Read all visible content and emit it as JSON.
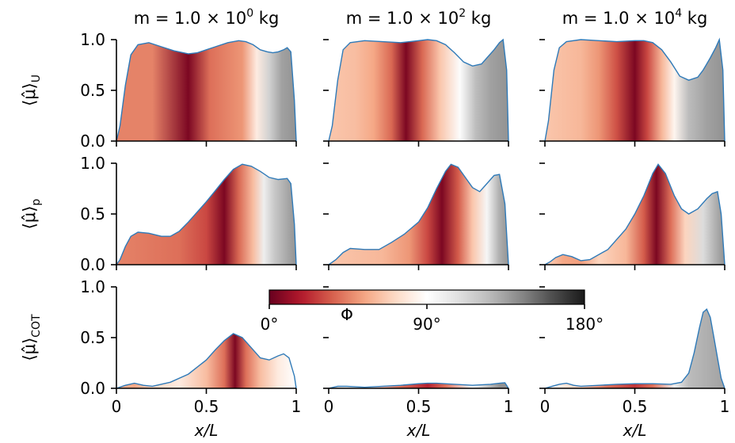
{
  "chart_data": {
    "type": "area",
    "colormap_ticks": [
      "0°",
      "90°",
      "180°"
    ],
    "colormap_label": "Φ",
    "colormap_stops": [
      "#67001f",
      "#b2182b",
      "#d6604d",
      "#f4a582",
      "#fddbc7",
      "#ffffff",
      "#e0e0e0",
      "#bababa",
      "#878787",
      "#4d4d4d",
      "#1a1a1a"
    ],
    "curve_color": "#2f7ab8",
    "xlabel": "x/L",
    "x_ticks": [
      "0",
      "0.5",
      "1"
    ],
    "xlim": [
      0,
      1
    ],
    "y_ticks": [
      "0.0",
      "0.5",
      "1.0"
    ],
    "ylim": [
      0,
      1
    ],
    "col_titles": [
      {
        "pre": "m = 1.0 × 10",
        "sup": "0",
        "post": " kg"
      },
      {
        "pre": "m = 1.0 × 10",
        "sup": "2",
        "post": " kg"
      },
      {
        "pre": "m = 1.0 × 10",
        "sup": "4",
        "post": " kg"
      }
    ],
    "row_labels": [
      {
        "base": "⟨μ̂⟩",
        "sub": "U"
      },
      {
        "base": "⟨μ̂⟩",
        "sub": "p"
      },
      {
        "base": "⟨μ̂⟩",
        "sub": "COT"
      }
    ],
    "panels": [
      {
        "row": 0,
        "col": 0,
        "x": [
          0,
          0.02,
          0.05,
          0.08,
          0.12,
          0.18,
          0.25,
          0.32,
          0.4,
          0.45,
          0.5,
          0.55,
          0.62,
          0.68,
          0.72,
          0.76,
          0.8,
          0.84,
          0.87,
          0.9,
          0.93,
          0.95,
          0.97,
          0.99,
          1.0
        ],
        "y": [
          0,
          0.15,
          0.55,
          0.85,
          0.95,
          0.97,
          0.93,
          0.89,
          0.86,
          0.87,
          0.9,
          0.93,
          0.97,
          0.99,
          0.98,
          0.95,
          0.9,
          0.88,
          0.87,
          0.88,
          0.9,
          0.92,
          0.88,
          0.4,
          0
        ],
        "phase": [
          [
            0,
            45
          ],
          [
            0.2,
            45
          ],
          [
            0.4,
            5
          ],
          [
            0.52,
            40
          ],
          [
            0.7,
            50
          ],
          [
            0.78,
            80
          ],
          [
            0.85,
            115
          ],
          [
            0.92,
            135
          ],
          [
            1.0,
            140
          ]
        ]
      },
      {
        "row": 0,
        "col": 1,
        "x": [
          0,
          0.02,
          0.05,
          0.08,
          0.12,
          0.2,
          0.3,
          0.4,
          0.5,
          0.55,
          0.6,
          0.65,
          0.7,
          0.75,
          0.8,
          0.85,
          0.88,
          0.92,
          0.95,
          0.97,
          0.99,
          1.0
        ],
        "y": [
          0,
          0.15,
          0.6,
          0.9,
          0.97,
          0.99,
          0.98,
          0.97,
          0.99,
          1.0,
          0.99,
          0.95,
          0.87,
          0.78,
          0.74,
          0.76,
          0.82,
          0.9,
          0.97,
          1.0,
          0.7,
          0
        ],
        "phase": [
          [
            0,
            65
          ],
          [
            0.15,
            62
          ],
          [
            0.25,
            55
          ],
          [
            0.35,
            38
          ],
          [
            0.43,
            5
          ],
          [
            0.52,
            38
          ],
          [
            0.62,
            65
          ],
          [
            0.73,
            92
          ],
          [
            0.82,
            125
          ],
          [
            0.9,
            135
          ],
          [
            1.0,
            140
          ]
        ]
      },
      {
        "row": 0,
        "col": 2,
        "x": [
          0,
          0.02,
          0.05,
          0.08,
          0.12,
          0.2,
          0.3,
          0.4,
          0.5,
          0.55,
          0.6,
          0.65,
          0.7,
          0.75,
          0.8,
          0.85,
          0.88,
          0.92,
          0.95,
          0.97,
          0.99,
          1.0
        ],
        "y": [
          0,
          0.2,
          0.7,
          0.92,
          0.98,
          1.0,
          0.99,
          0.98,
          0.99,
          0.99,
          0.97,
          0.9,
          0.78,
          0.64,
          0.6,
          0.63,
          0.7,
          0.82,
          0.92,
          1.0,
          0.7,
          0
        ],
        "phase": [
          [
            0,
            65
          ],
          [
            0.2,
            60
          ],
          [
            0.3,
            50
          ],
          [
            0.4,
            32
          ],
          [
            0.5,
            5
          ],
          [
            0.57,
            30
          ],
          [
            0.65,
            60
          ],
          [
            0.72,
            85
          ],
          [
            0.8,
            125
          ],
          [
            0.9,
            135
          ],
          [
            1.0,
            140
          ]
        ]
      },
      {
        "row": 1,
        "col": 0,
        "x": [
          0,
          0.02,
          0.05,
          0.08,
          0.12,
          0.18,
          0.25,
          0.3,
          0.35,
          0.4,
          0.45,
          0.5,
          0.55,
          0.6,
          0.65,
          0.7,
          0.75,
          0.8,
          0.85,
          0.9,
          0.95,
          0.97,
          0.99,
          1.0
        ],
        "y": [
          0,
          0.05,
          0.18,
          0.28,
          0.32,
          0.31,
          0.28,
          0.28,
          0.33,
          0.42,
          0.52,
          0.62,
          0.73,
          0.84,
          0.94,
          0.99,
          0.97,
          0.92,
          0.86,
          0.84,
          0.85,
          0.8,
          0.4,
          0
        ],
        "phase": [
          [
            0,
            45
          ],
          [
            0.35,
            40
          ],
          [
            0.5,
            30
          ],
          [
            0.6,
            5
          ],
          [
            0.68,
            38
          ],
          [
            0.76,
            62
          ],
          [
            0.82,
            100
          ],
          [
            0.88,
            120
          ],
          [
            1.0,
            140
          ]
        ]
      },
      {
        "row": 1,
        "col": 1,
        "x": [
          0,
          0.04,
          0.08,
          0.12,
          0.2,
          0.28,
          0.35,
          0.42,
          0.5,
          0.55,
          0.6,
          0.65,
          0.68,
          0.72,
          0.76,
          0.8,
          0.84,
          0.88,
          0.92,
          0.95,
          0.98,
          0.99,
          1.0
        ],
        "y": [
          0,
          0.05,
          0.12,
          0.16,
          0.15,
          0.15,
          0.22,
          0.3,
          0.42,
          0.56,
          0.75,
          0.92,
          0.99,
          0.96,
          0.86,
          0.76,
          0.72,
          0.8,
          0.88,
          0.89,
          0.6,
          0.3,
          0
        ],
        "phase": [
          [
            0,
            65
          ],
          [
            0.3,
            60
          ],
          [
            0.45,
            50
          ],
          [
            0.55,
            30
          ],
          [
            0.63,
            5
          ],
          [
            0.72,
            35
          ],
          [
            0.8,
            65
          ],
          [
            0.88,
            95
          ],
          [
            0.95,
            130
          ],
          [
            1.0,
            140
          ]
        ]
      },
      {
        "row": 1,
        "col": 2,
        "x": [
          0,
          0.03,
          0.06,
          0.1,
          0.15,
          0.2,
          0.25,
          0.35,
          0.45,
          0.5,
          0.55,
          0.6,
          0.63,
          0.67,
          0.72,
          0.76,
          0.8,
          0.85,
          0.9,
          0.93,
          0.96,
          0.98,
          1.0
        ],
        "y": [
          0,
          0.03,
          0.07,
          0.1,
          0.08,
          0.04,
          0.05,
          0.15,
          0.35,
          0.5,
          0.68,
          0.9,
          0.99,
          0.9,
          0.68,
          0.55,
          0.5,
          0.55,
          0.65,
          0.7,
          0.72,
          0.5,
          0
        ],
        "phase": [
          [
            0,
            70
          ],
          [
            0.1,
            55
          ],
          [
            0.2,
            52
          ],
          [
            0.3,
            70
          ],
          [
            0.45,
            60
          ],
          [
            0.55,
            35
          ],
          [
            0.62,
            5
          ],
          [
            0.7,
            40
          ],
          [
            0.78,
            70
          ],
          [
            0.88,
            110
          ],
          [
            0.95,
            130
          ],
          [
            1.0,
            140
          ]
        ]
      },
      {
        "row": 2,
        "col": 0,
        "x": [
          0,
          0.05,
          0.1,
          0.15,
          0.2,
          0.3,
          0.4,
          0.5,
          0.55,
          0.6,
          0.65,
          0.7,
          0.75,
          0.8,
          0.85,
          0.9,
          0.93,
          0.96,
          0.99,
          1.0
        ],
        "y": [
          0,
          0.03,
          0.05,
          0.03,
          0.02,
          0.06,
          0.14,
          0.28,
          0.38,
          0.47,
          0.54,
          0.5,
          0.4,
          0.3,
          0.28,
          0.32,
          0.34,
          0.3,
          0.12,
          0
        ],
        "phase": [
          [
            0,
            60
          ],
          [
            0.1,
            55
          ],
          [
            0.2,
            72
          ],
          [
            0.35,
            80
          ],
          [
            0.5,
            62
          ],
          [
            0.6,
            40
          ],
          [
            0.66,
            5
          ],
          [
            0.72,
            40
          ],
          [
            0.8,
            62
          ],
          [
            0.9,
            80
          ],
          [
            1.0,
            90
          ]
        ]
      },
      {
        "row": 2,
        "col": 1,
        "x": [
          0,
          0.05,
          0.1,
          0.2,
          0.3,
          0.4,
          0.5,
          0.55,
          0.6,
          0.7,
          0.8,
          0.9,
          0.95,
          0.98,
          1.0
        ],
        "y": [
          0,
          0.02,
          0.02,
          0.01,
          0.02,
          0.03,
          0.045,
          0.05,
          0.05,
          0.04,
          0.03,
          0.04,
          0.05,
          0.055,
          0
        ],
        "phase": [
          [
            0,
            110
          ],
          [
            0.2,
            90
          ],
          [
            0.4,
            40
          ],
          [
            0.55,
            20
          ],
          [
            0.65,
            40
          ],
          [
            0.8,
            90
          ],
          [
            0.95,
            140
          ],
          [
            1.0,
            140
          ]
        ]
      },
      {
        "row": 2,
        "col": 2,
        "x": [
          0,
          0.04,
          0.08,
          0.12,
          0.16,
          0.2,
          0.3,
          0.4,
          0.5,
          0.6,
          0.7,
          0.76,
          0.8,
          0.83,
          0.86,
          0.88,
          0.9,
          0.92,
          0.94,
          0.96,
          0.98,
          1.0
        ],
        "y": [
          0,
          0.02,
          0.04,
          0.05,
          0.03,
          0.02,
          0.03,
          0.04,
          0.045,
          0.045,
          0.04,
          0.06,
          0.15,
          0.35,
          0.6,
          0.75,
          0.78,
          0.7,
          0.5,
          0.3,
          0.1,
          0
        ],
        "phase": [
          [
            0,
            90
          ],
          [
            0.2,
            70
          ],
          [
            0.35,
            40
          ],
          [
            0.5,
            25
          ],
          [
            0.6,
            40
          ],
          [
            0.72,
            100
          ],
          [
            0.8,
            125
          ],
          [
            0.9,
            130
          ],
          [
            1.0,
            135
          ]
        ]
      }
    ]
  }
}
